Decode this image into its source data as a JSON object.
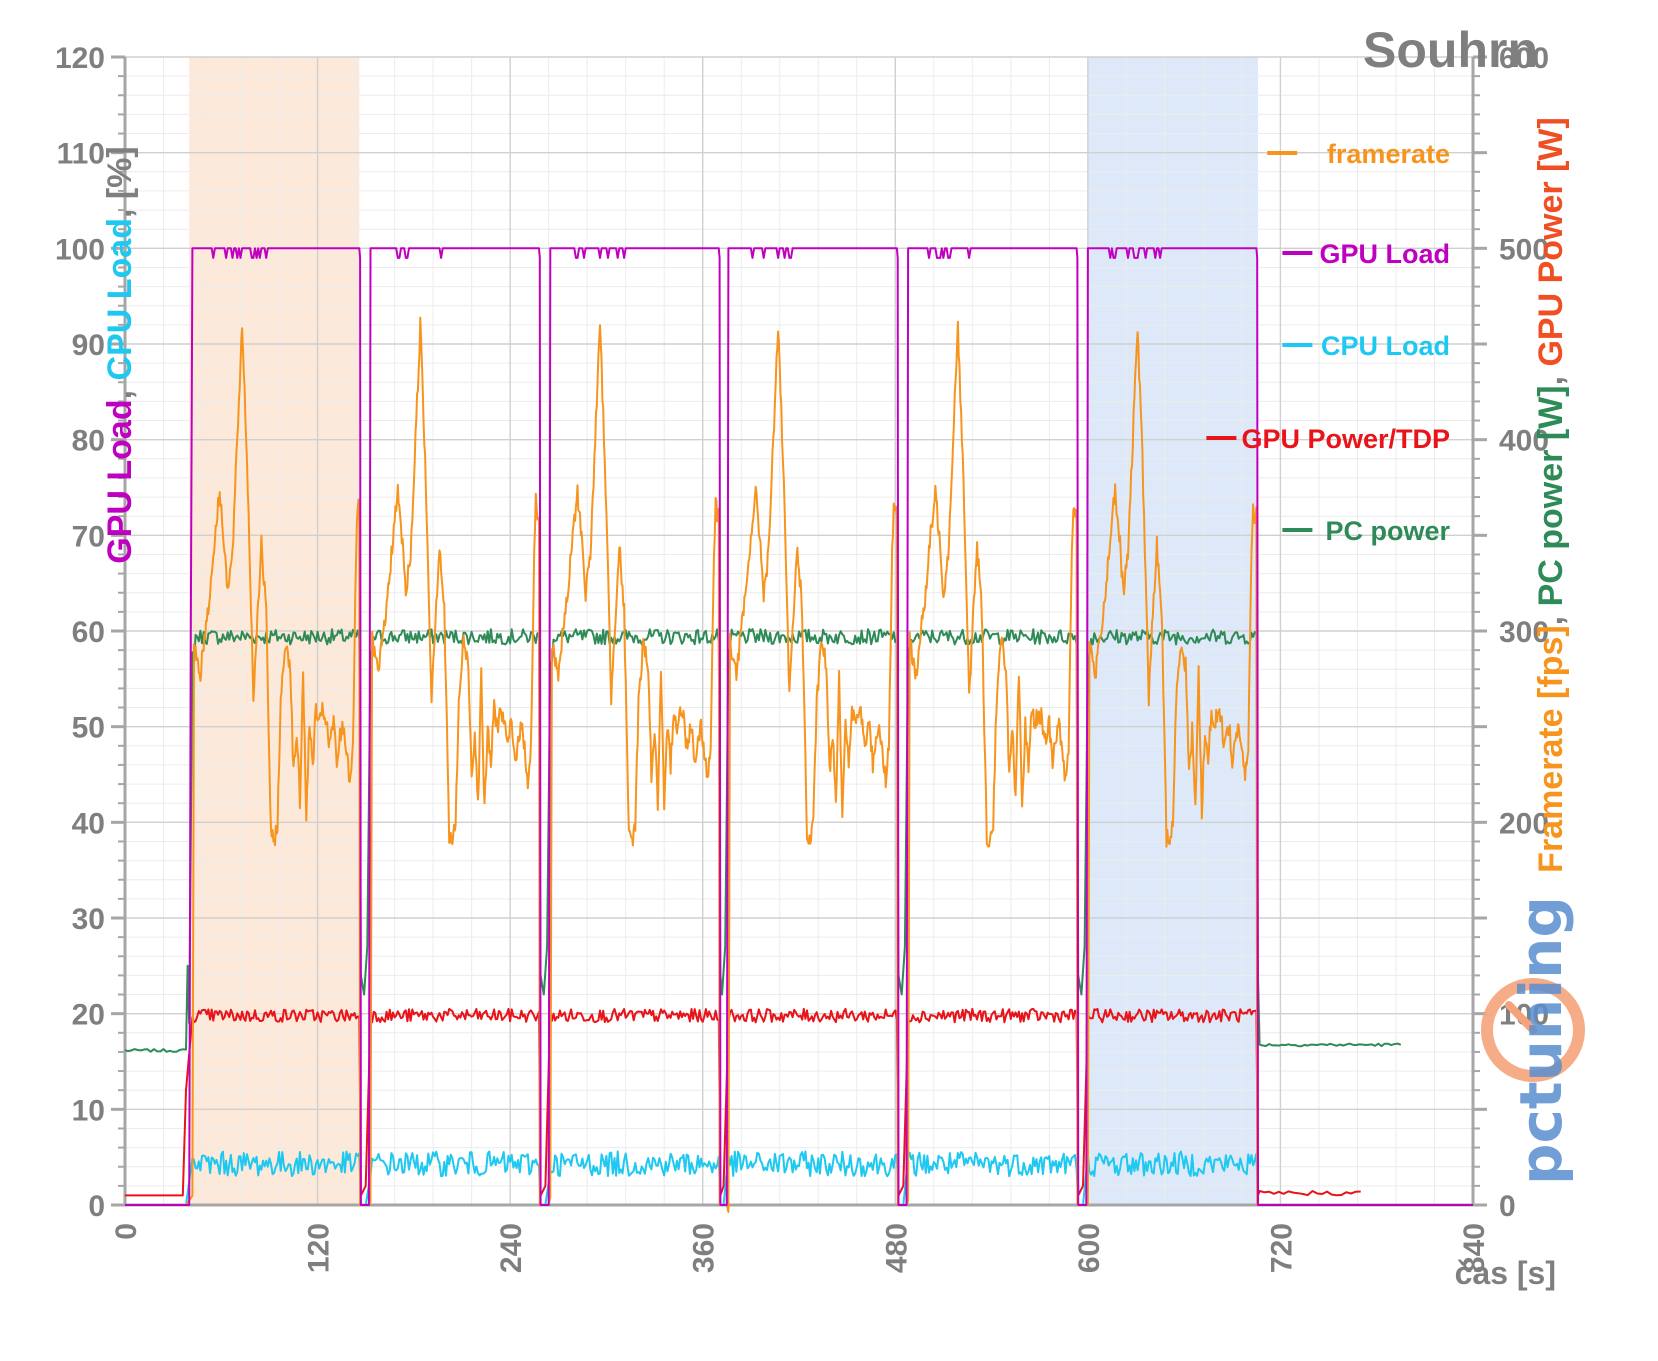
{
  "chart_data": {
    "type": "line",
    "title": "Souhrn",
    "xlabel": "čas [s]",
    "x_range": [
      0,
      840
    ],
    "x_ticks": [
      "0",
      "120",
      "240",
      "360",
      "480",
      "600",
      "720",
      "840"
    ],
    "y_left": {
      "range": [
        0,
        120
      ],
      "ticks": [
        "0",
        "10",
        "20",
        "30",
        "40",
        "50",
        "60",
        "70",
        "80",
        "90",
        "100",
        "110",
        "120"
      ],
      "label_parts": [
        {
          "text": "GPU Load",
          "color": "#c000c0"
        },
        {
          "text": ", ",
          "color": "#7f7f7f"
        },
        {
          "text": "CPU Load",
          "color": "#1ec8f0"
        },
        {
          "text": ", [%]",
          "color": "#7f7f7f"
        }
      ]
    },
    "y_right": {
      "range": [
        0,
        600
      ],
      "ticks": [
        "0",
        "100",
        "200",
        "300",
        "400",
        "500",
        "600"
      ],
      "label_parts": [
        {
          "text": "Framerate [fps]",
          "color": "#f7941d"
        },
        {
          "text": ", ",
          "color": "#7f7f7f"
        },
        {
          "text": "PC power [W]",
          "color": "#2e8b57"
        },
        {
          "text": ", ",
          "color": "#7f7f7f"
        },
        {
          "text": "GPU Power [W]",
          "color": "#f04e23"
        }
      ]
    },
    "highlight_regions": [
      {
        "x": [
          40,
          146
        ],
        "color": "#fde9d9"
      },
      {
        "x": [
          600,
          706
        ],
        "color": "#dde9f8"
      }
    ],
    "runs": [
      {
        "start": 42,
        "end": 146
      },
      {
        "start": 153,
        "end": 258
      },
      {
        "start": 265,
        "end": 370
      },
      {
        "start": 376,
        "end": 481
      },
      {
        "start": 488,
        "end": 593
      },
      {
        "start": 600,
        "end": 705
      }
    ],
    "legend": [
      {
        "name": "framerate",
        "color": "#f7941d"
      },
      {
        "name": "GPU Load",
        "color": "#c000c0"
      },
      {
        "name": "CPU Load",
        "color": "#1ec8f0"
      },
      {
        "name": "GPU Power/TDP",
        "color": "#e8141a"
      },
      {
        "name": "PC power",
        "color": "#2e8b57"
      }
    ],
    "series": [
      {
        "name": "framerate",
        "axis": "right",
        "color": "#f7941d",
        "run_profile": {
          "t": [
            0,
            1,
            3,
            5,
            8,
            11,
            14,
            17,
            20,
            22,
            25,
            28,
            31,
            34,
            36,
            38,
            40,
            43,
            46,
            49,
            51,
            53,
            55,
            58,
            61,
            63,
            65,
            67,
            69,
            71,
            73,
            75,
            77,
            79,
            81,
            83,
            85,
            88,
            90,
            92,
            94,
            96,
            98,
            100,
            102,
            103,
            104
          ],
          "v": [
            0,
            295,
            285,
            278,
            300,
            320,
            350,
            372,
            345,
            320,
            340,
            400,
            460,
            390,
            330,
            265,
            300,
            345,
            310,
            192,
            190,
            200,
            262,
            295,
            282,
            225,
            248,
            210,
            278,
            205,
            250,
            230,
            260,
            250,
            258,
            255,
            240,
            252,
            230,
            245,
            250,
            238,
            222,
            240,
            340,
            368,
            360
          ]
        },
        "idle": [
          [
            0,
            0
          ],
          [
            840,
            0
          ]
        ]
      },
      {
        "name": "GPU Load",
        "axis": "left",
        "color": "#c000c0",
        "active_value": 100,
        "idle_value": 0
      },
      {
        "name": "CPU Load",
        "axis": "left",
        "color": "#1ec8f0",
        "active_mean": 4.3,
        "idle_value": 0
      },
      {
        "name": "GPU Power/TDP",
        "axis": "left",
        "color": "#e8141a",
        "active_mean": 19.8,
        "idle_value": 1
      },
      {
        "name": "PC power",
        "axis": "right",
        "color": "#2e8b57",
        "active_mean": 297,
        "idle_before": 80,
        "idle_after": 83,
        "idle_end_x": 795
      }
    ]
  },
  "watermark": "pctuning"
}
